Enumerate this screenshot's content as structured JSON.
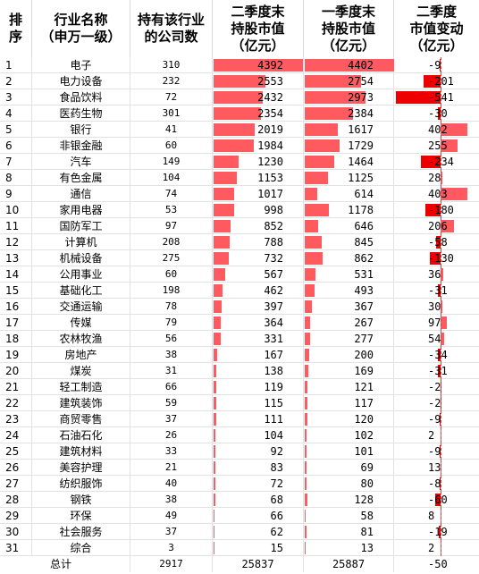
{
  "header": {
    "rank": "排\n序",
    "industry": "行业名称\n（申万一级）",
    "count": "持有该行业\n的公司数",
    "q2_value": "二季度末\n持股市值\n（亿元）",
    "q1_value": "一季度末\n持股市值\n（亿元）",
    "change": "二季度\n市值变动\n（亿元）"
  },
  "colors": {
    "bar_positive": "#ff5a5f",
    "bar_negative": "#ee0000"
  },
  "rows": [
    {
      "rank": "1",
      "name": "电子",
      "count": "310",
      "q2": 4392,
      "q1": 4402,
      "chg": -9
    },
    {
      "rank": "2",
      "name": "电力设备",
      "count": "232",
      "q2": 2553,
      "q1": 2754,
      "chg": -201
    },
    {
      "rank": "3",
      "name": "食品饮料",
      "count": "72",
      "q2": 2432,
      "q1": 2973,
      "chg": -541
    },
    {
      "rank": "4",
      "name": "医药生物",
      "count": "301",
      "q2": 2354,
      "q1": 2384,
      "chg": -30
    },
    {
      "rank": "5",
      "name": "银行",
      "count": "41",
      "q2": 2019,
      "q1": 1617,
      "chg": 402
    },
    {
      "rank": "6",
      "name": "非银金融",
      "count": "60",
      "q2": 1984,
      "q1": 1729,
      "chg": 255
    },
    {
      "rank": "7",
      "name": "汽车",
      "count": "149",
      "q2": 1230,
      "q1": 1464,
      "chg": -234
    },
    {
      "rank": "8",
      "name": "有色金属",
      "count": "104",
      "q2": 1153,
      "q1": 1125,
      "chg": 28
    },
    {
      "rank": "9",
      "name": "通信",
      "count": "74",
      "q2": 1017,
      "q1": 614,
      "chg": 403
    },
    {
      "rank": "10",
      "name": "家用电器",
      "count": "53",
      "q2": 998,
      "q1": 1178,
      "chg": -180
    },
    {
      "rank": "11",
      "name": "国防军工",
      "count": "97",
      "q2": 852,
      "q1": 646,
      "chg": 206
    },
    {
      "rank": "12",
      "name": "计算机",
      "count": "208",
      "q2": 788,
      "q1": 845,
      "chg": -58
    },
    {
      "rank": "13",
      "name": "机械设备",
      "count": "275",
      "q2": 732,
      "q1": 862,
      "chg": -130
    },
    {
      "rank": "14",
      "name": "公用事业",
      "count": "60",
      "q2": 567,
      "q1": 531,
      "chg": 36
    },
    {
      "rank": "15",
      "name": "基础化工",
      "count": "198",
      "q2": 462,
      "q1": 493,
      "chg": -31
    },
    {
      "rank": "16",
      "name": "交通运输",
      "count": "78",
      "q2": 397,
      "q1": 367,
      "chg": 30
    },
    {
      "rank": "17",
      "name": "传媒",
      "count": "79",
      "q2": 364,
      "q1": 267,
      "chg": 97
    },
    {
      "rank": "18",
      "name": "农林牧渔",
      "count": "56",
      "q2": 331,
      "q1": 277,
      "chg": 54
    },
    {
      "rank": "19",
      "name": "房地产",
      "count": "38",
      "q2": 167,
      "q1": 200,
      "chg": -34
    },
    {
      "rank": "20",
      "name": "煤炭",
      "count": "31",
      "q2": 138,
      "q1": 169,
      "chg": -31
    },
    {
      "rank": "21",
      "name": "轻工制造",
      "count": "66",
      "q2": 119,
      "q1": 121,
      "chg": -2
    },
    {
      "rank": "22",
      "name": "建筑装饰",
      "count": "59",
      "q2": 115,
      "q1": 117,
      "chg": -2
    },
    {
      "rank": "23",
      "name": "商贸零售",
      "count": "37",
      "q2": 111,
      "q1": 120,
      "chg": -9
    },
    {
      "rank": "24",
      "name": "石油石化",
      "count": "26",
      "q2": 104,
      "q1": 102,
      "chg": 2
    },
    {
      "rank": "25",
      "name": "建筑材料",
      "count": "33",
      "q2": 92,
      "q1": 101,
      "chg": -9
    },
    {
      "rank": "26",
      "name": "美容护理",
      "count": "21",
      "q2": 83,
      "q1": 69,
      "chg": 13
    },
    {
      "rank": "27",
      "name": "纺织服饰",
      "count": "40",
      "q2": 72,
      "q1": 80,
      "chg": -8
    },
    {
      "rank": "28",
      "name": "钢铁",
      "count": "38",
      "q2": 68,
      "q1": 128,
      "chg": -60
    },
    {
      "rank": "29",
      "name": "环保",
      "count": "49",
      "q2": 66,
      "q1": 58,
      "chg": 8
    },
    {
      "rank": "30",
      "name": "社会服务",
      "count": "37",
      "q2": 62,
      "q1": 81,
      "chg": -19
    },
    {
      "rank": "31",
      "name": "综合",
      "count": "3",
      "q2": 15,
      "q1": 13,
      "chg": 2
    }
  ],
  "total": {
    "label": "总计",
    "count": "2917",
    "q2": "25837",
    "q1": "25887",
    "chg": "-50"
  }
}
